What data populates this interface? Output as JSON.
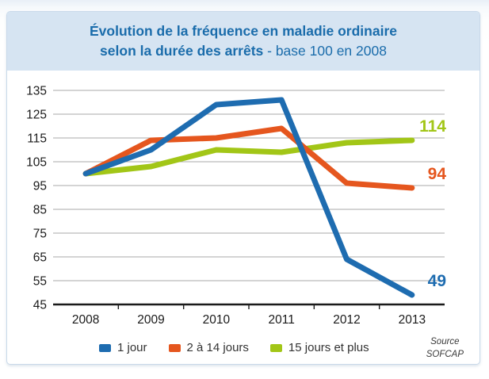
{
  "title": {
    "line1": "Évolution de la fréquence en maladie ordinaire",
    "line2_bold": "selon la durée des arrêts",
    "line2_rest": " - base 100 en 2008"
  },
  "source": {
    "line1": "Source",
    "line2": "SOFCAP"
  },
  "colors": {
    "title_text": "#1a6cab",
    "title_band_bg": "#d6e4f2",
    "series_blue": "#1e6cb0",
    "series_red": "#e5561e",
    "series_green": "#a2c617",
    "gridline": "#a9a9a9",
    "axis": "#1a1a1a",
    "card_border": "#c9d9ea"
  },
  "chart_data": {
    "type": "line",
    "title": "Évolution de la fréquence en maladie ordinaire selon la durée des arrêts - base 100 en 2008",
    "categories": [
      "2008",
      "2009",
      "2010",
      "2011",
      "2012",
      "2013"
    ],
    "series": [
      {
        "name": "1 jour",
        "color": "#1e6cb0",
        "values": [
          100,
          110,
          129,
          131,
          64,
          49
        ],
        "end_label": "49"
      },
      {
        "name": "2 à 14 jours",
        "color": "#e5561e",
        "values": [
          100,
          114,
          115,
          119,
          96,
          94
        ],
        "end_label": "94"
      },
      {
        "name": "15 jours et plus",
        "color": "#a2c617",
        "values": [
          100,
          103,
          110,
          109,
          113,
          114
        ],
        "end_label": "114"
      }
    ],
    "draw_order": [
      2,
      1,
      0
    ],
    "xlabel": "",
    "ylabel": "",
    "ylim": [
      45,
      135
    ],
    "yticks": [
      45,
      55,
      65,
      75,
      85,
      95,
      105,
      115,
      125,
      135
    ],
    "grid": "horizontal",
    "legend_position": "bottom"
  }
}
